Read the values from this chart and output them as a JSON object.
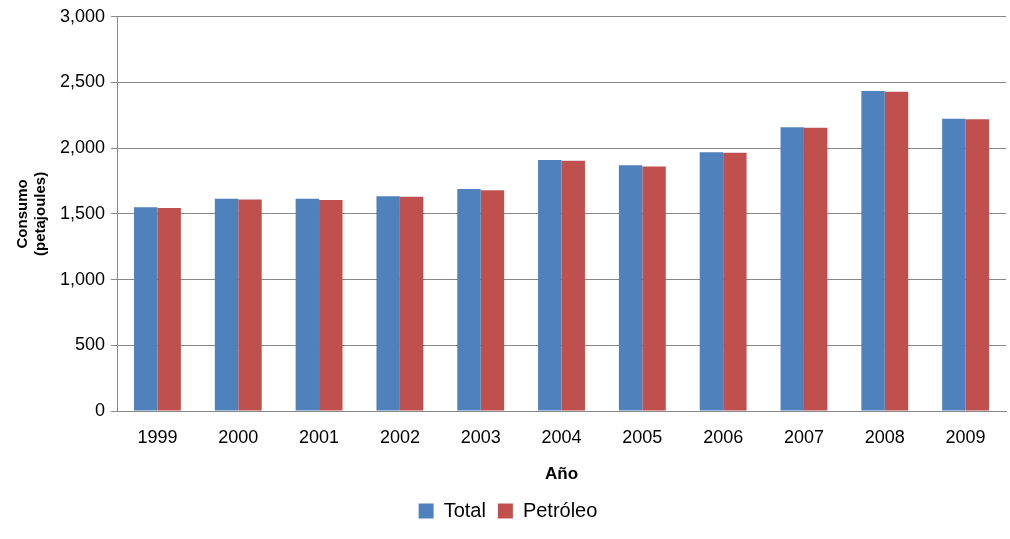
{
  "chart_data": {
    "type": "bar",
    "xlabel": "Año",
    "ylabel": "Consumo\n(petajoules)",
    "categories": [
      "1999",
      "2000",
      "2001",
      "2002",
      "2003",
      "2004",
      "2005",
      "2006",
      "2007",
      "2008",
      "2009"
    ],
    "series": [
      {
        "name": "Total",
        "color": "#4f81bd",
        "values": [
          1550,
          1615,
          1615,
          1635,
          1690,
          1910,
          1870,
          1970,
          2160,
          2435,
          2225
        ]
      },
      {
        "name": "Petróleo",
        "color": "#c0504d",
        "values": [
          1545,
          1610,
          1605,
          1630,
          1680,
          1905,
          1860,
          1965,
          2155,
          2430,
          2220
        ]
      }
    ],
    "ylim": [
      0,
      3000
    ],
    "yticks": [
      {
        "value": 0,
        "label": "0"
      },
      {
        "value": 500,
        "label": "500"
      },
      {
        "value": 1000,
        "label": "1,000"
      },
      {
        "value": 1500,
        "label": "1,500"
      },
      {
        "value": 2000,
        "label": "2,000"
      },
      {
        "value": 2500,
        "label": "2,500"
      },
      {
        "value": 3000,
        "label": "3,000"
      }
    ],
    "grid": "y",
    "legend": "bottom"
  }
}
